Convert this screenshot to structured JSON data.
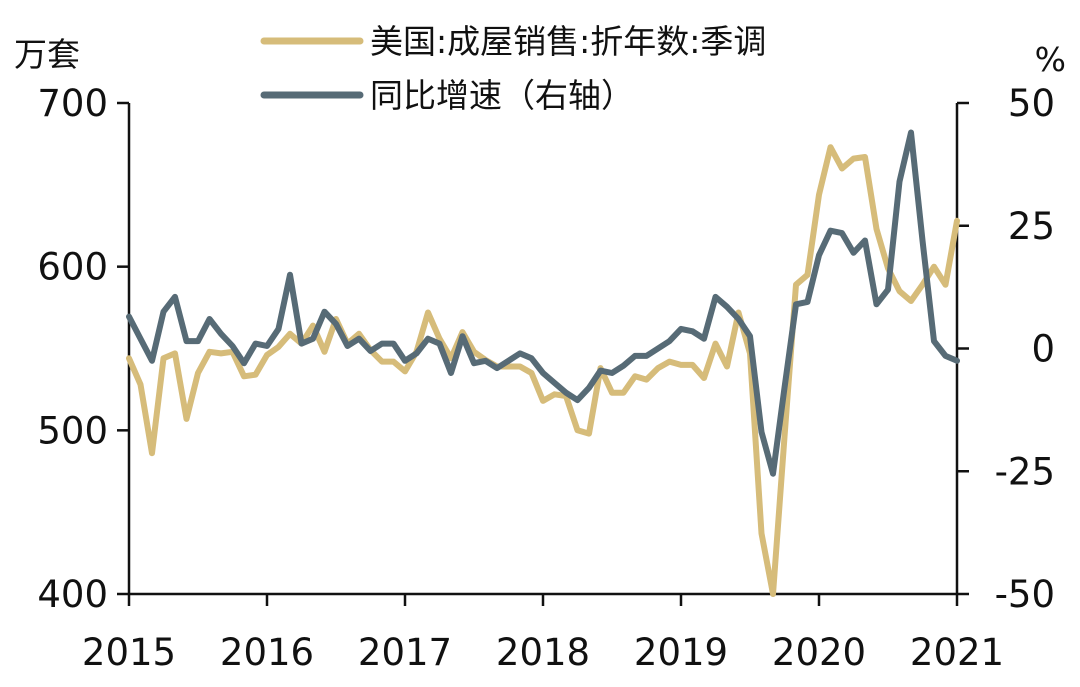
{
  "chart_data": {
    "type": "line",
    "title": "",
    "left_axis": {
      "unit": "万套",
      "ylim": [
        400,
        700
      ],
      "ticks": [
        "400",
        "500",
        "600",
        "700"
      ]
    },
    "right_axis": {
      "unit": "%",
      "ylim": [
        -50,
        50
      ],
      "ticks": [
        "-50",
        "-25",
        "0",
        "25",
        "50"
      ]
    },
    "x_axis": {
      "range": [
        2015,
        2021
      ],
      "ticks": [
        "2015",
        "2016",
        "2017",
        "2018",
        "2019",
        "2020",
        "2021"
      ]
    },
    "legend": {
      "placement": "top-center"
    },
    "grid": false,
    "series": [
      {
        "name": "美国:成屋销售:折年数:季调",
        "axis": "left",
        "color": "#d6bc7a",
        "points": [
          [
            "2015-01",
            544
          ],
          [
            "2015-02",
            528
          ],
          [
            "2015-03",
            486
          ],
          [
            "2015-04",
            544
          ],
          [
            "2015-05",
            547
          ],
          [
            "2015-06",
            507
          ],
          [
            "2015-07",
            535
          ],
          [
            "2015-08",
            548
          ],
          [
            "2015-09",
            547
          ],
          [
            "2015-10",
            548
          ],
          [
            "2015-11",
            533
          ],
          [
            "2015-12",
            534
          ],
          [
            "2016-01",
            546
          ],
          [
            "2016-02",
            551
          ],
          [
            "2016-03",
            559
          ],
          [
            "2016-04",
            553
          ],
          [
            "2016-05",
            564
          ],
          [
            "2016-06",
            548
          ],
          [
            "2016-07",
            568
          ],
          [
            "2016-08",
            553
          ],
          [
            "2016-09",
            559
          ],
          [
            "2016-10",
            549
          ],
          [
            "2016-11",
            542
          ],
          [
            "2016-12",
            542
          ],
          [
            "2017-01",
            536
          ],
          [
            "2017-02",
            548
          ],
          [
            "2017-03",
            572
          ],
          [
            "2017-04",
            556
          ],
          [
            "2017-05",
            544
          ],
          [
            "2017-06",
            560
          ],
          [
            "2017-07",
            548
          ],
          [
            "2017-08",
            543
          ],
          [
            "2017-09",
            539
          ],
          [
            "2017-10",
            539
          ],
          [
            "2017-11",
            539
          ],
          [
            "2017-12",
            535
          ],
          [
            "2018-01",
            518
          ],
          [
            "2018-02",
            522
          ],
          [
            "2018-03",
            521
          ],
          [
            "2018-04",
            500
          ],
          [
            "2018-05",
            498
          ],
          [
            "2018-06",
            538
          ],
          [
            "2018-07",
            523
          ],
          [
            "2018-08",
            523
          ],
          [
            "2018-09",
            533
          ],
          [
            "2018-10",
            531
          ],
          [
            "2018-11",
            538
          ],
          [
            "2018-12",
            542
          ],
          [
            "2019-01",
            540
          ],
          [
            "2019-02",
            540
          ],
          [
            "2019-03",
            532
          ],
          [
            "2019-04",
            553
          ],
          [
            "2019-05",
            539
          ],
          [
            "2019-06",
            572
          ],
          [
            "2019-07",
            547
          ],
          [
            "2019-08",
            437
          ],
          [
            "2019-09",
            400
          ],
          [
            "2019-10",
            496
          ],
          [
            "2019-11",
            589
          ],
          [
            "2019-12",
            595
          ],
          [
            "2020-01",
            644
          ],
          [
            "2020-02",
            673
          ],
          [
            "2020-03",
            660
          ],
          [
            "2020-04",
            666
          ],
          [
            "2020-05",
            667
          ],
          [
            "2020-06",
            623
          ],
          [
            "2020-07",
            599
          ],
          [
            "2020-08",
            585
          ],
          [
            "2020-09",
            579
          ],
          [
            "2020-10",
            589
          ],
          [
            "2020-11",
            600
          ],
          [
            "2020-12",
            589
          ],
          [
            "2021-01",
            628
          ]
        ]
      },
      {
        "name": "同比增速（右轴）",
        "axis": "right",
        "color": "#576b76",
        "points": [
          [
            "2015-01",
            6.5
          ],
          [
            "2015-02",
            2
          ],
          [
            "2015-03",
            -2.5
          ],
          [
            "2015-04",
            7.5
          ],
          [
            "2015-05",
            10.5
          ],
          [
            "2015-06",
            1.5
          ],
          [
            "2015-07",
            1.5
          ],
          [
            "2015-08",
            6
          ],
          [
            "2015-09",
            3
          ],
          [
            "2015-10",
            0.5
          ],
          [
            "2015-11",
            -3
          ],
          [
            "2015-12",
            1
          ],
          [
            "2016-01",
            0.5
          ],
          [
            "2016-02",
            4
          ],
          [
            "2016-03",
            15
          ],
          [
            "2016-04",
            1
          ],
          [
            "2016-05",
            2
          ],
          [
            "2016-06",
            7.5
          ],
          [
            "2016-07",
            5
          ],
          [
            "2016-08",
            0.5
          ],
          [
            "2016-09",
            2
          ],
          [
            "2016-10",
            -0.5
          ],
          [
            "2016-11",
            1
          ],
          [
            "2016-12",
            1
          ],
          [
            "2017-01",
            -2.5
          ],
          [
            "2017-02",
            -1
          ],
          [
            "2017-03",
            2
          ],
          [
            "2017-04",
            1
          ],
          [
            "2017-05",
            -5
          ],
          [
            "2017-06",
            2.5
          ],
          [
            "2017-07",
            -3
          ],
          [
            "2017-08",
            -2.5
          ],
          [
            "2017-09",
            -4
          ],
          [
            "2017-10",
            -2.5
          ],
          [
            "2017-11",
            -1
          ],
          [
            "2017-12",
            -2
          ],
          [
            "2018-01",
            -5
          ],
          [
            "2018-02",
            -7
          ],
          [
            "2018-03",
            -9
          ],
          [
            "2018-04",
            -10.5
          ],
          [
            "2018-05",
            -8
          ],
          [
            "2018-06",
            -4.5
          ],
          [
            "2018-07",
            -5
          ],
          [
            "2018-08",
            -3.5
          ],
          [
            "2018-09",
            -1.5
          ],
          [
            "2018-10",
            -1.5
          ],
          [
            "2018-11",
            0
          ],
          [
            "2018-12",
            1.5
          ],
          [
            "2019-01",
            4
          ],
          [
            "2019-02",
            3.5
          ],
          [
            "2019-03",
            2
          ],
          [
            "2019-04",
            10.5
          ],
          [
            "2019-05",
            8.5
          ],
          [
            "2019-06",
            6
          ],
          [
            "2019-07",
            2.5
          ],
          [
            "2019-08",
            -17
          ],
          [
            "2019-09",
            -25.5
          ],
          [
            "2019-10",
            -8
          ],
          [
            "2019-11",
            9
          ],
          [
            "2019-12",
            9.5
          ],
          [
            "2020-01",
            19
          ],
          [
            "2020-02",
            24
          ],
          [
            "2020-03",
            23.5
          ],
          [
            "2020-04",
            19.5
          ],
          [
            "2020-05",
            22
          ],
          [
            "2020-06",
            9
          ],
          [
            "2020-07",
            12
          ],
          [
            "2020-08",
            34
          ],
          [
            "2020-09",
            44
          ],
          [
            "2020-10",
            22
          ],
          [
            "2020-11",
            1.5
          ],
          [
            "2020-12",
            -1.5
          ],
          [
            "2021-01",
            -2.5
          ]
        ]
      }
    ]
  }
}
